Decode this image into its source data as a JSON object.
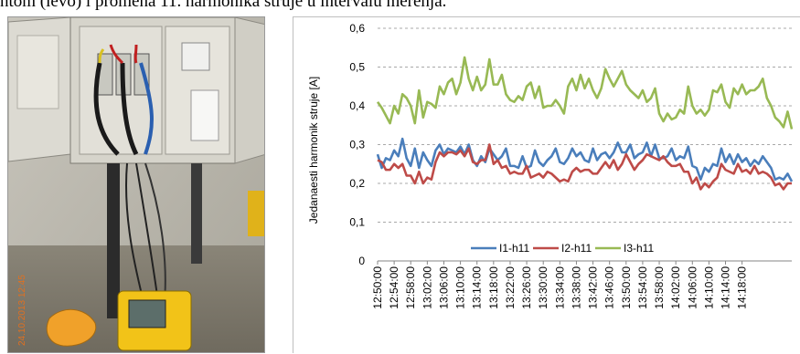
{
  "caption": "ntom (levo) i promena 11. harmonika struje u intervalu merenja.",
  "photo": {
    "timestamp_stamp": "24.10.2013 12:45"
  },
  "chart_data": {
    "type": "line",
    "title": "",
    "xlabel": "",
    "ylabel": "Jedanaesti  harmonik struje [A]",
    "ylim": [
      0,
      0.6
    ],
    "yticks": [
      "0",
      "0,1",
      "0,2",
      "0,3",
      "0,4",
      "0,5",
      "0,6"
    ],
    "grid": "horizontal dashed",
    "legend_position": "inside-bottom-center",
    "x_tick_labels": [
      "12:50:00",
      "12:54:00",
      "12:58:00",
      "13:02:00",
      "13:06:00",
      "13:10:00",
      "13:14:00",
      "13:18:00",
      "13:22:00",
      "13:26:00",
      "13:30:00",
      "13:34:00",
      "13:38:00",
      "13:42:00",
      "13:46:00",
      "13:50:00",
      "13:54:00",
      "13:58:00",
      "14:02:00",
      "14:06:00",
      "14:10:00",
      "14:14:00",
      "14:18:00"
    ],
    "x_tick_every": 4,
    "series": [
      {
        "name": "I1-h11",
        "color": "#4A7EBB",
        "values": [
          0.275,
          0.24,
          0.265,
          0.26,
          0.285,
          0.27,
          0.315,
          0.265,
          0.245,
          0.29,
          0.24,
          0.28,
          0.26,
          0.245,
          0.285,
          0.3,
          0.275,
          0.29,
          0.285,
          0.28,
          0.295,
          0.275,
          0.3,
          0.26,
          0.245,
          0.27,
          0.255,
          0.29,
          0.275,
          0.26,
          0.27,
          0.29,
          0.245,
          0.245,
          0.24,
          0.27,
          0.24,
          0.245,
          0.285,
          0.255,
          0.245,
          0.26,
          0.27,
          0.29,
          0.255,
          0.25,
          0.265,
          0.29,
          0.27,
          0.28,
          0.26,
          0.255,
          0.29,
          0.26,
          0.275,
          0.28,
          0.265,
          0.28,
          0.305,
          0.28,
          0.28,
          0.3,
          0.265,
          0.275,
          0.28,
          0.305,
          0.27,
          0.3,
          0.265,
          0.265,
          0.27,
          0.29,
          0.26,
          0.27,
          0.265,
          0.295,
          0.245,
          0.24,
          0.21,
          0.24,
          0.23,
          0.25,
          0.245,
          0.29,
          0.255,
          0.275,
          0.25,
          0.275,
          0.255,
          0.265,
          0.245,
          0.26,
          0.25,
          0.27,
          0.255,
          0.24,
          0.21,
          0.215,
          0.21,
          0.225,
          0.205
        ]
      },
      {
        "name": "I2-h11",
        "color": "#BE4B48",
        "values": [
          0.26,
          0.255,
          0.235,
          0.235,
          0.25,
          0.24,
          0.25,
          0.22,
          0.22,
          0.2,
          0.23,
          0.2,
          0.215,
          0.21,
          0.255,
          0.28,
          0.27,
          0.28,
          0.28,
          0.275,
          0.285,
          0.27,
          0.29,
          0.255,
          0.25,
          0.26,
          0.26,
          0.3,
          0.25,
          0.26,
          0.24,
          0.245,
          0.225,
          0.23,
          0.225,
          0.225,
          0.245,
          0.215,
          0.22,
          0.225,
          0.215,
          0.23,
          0.225,
          0.215,
          0.205,
          0.21,
          0.205,
          0.23,
          0.24,
          0.23,
          0.235,
          0.235,
          0.225,
          0.225,
          0.24,
          0.255,
          0.24,
          0.26,
          0.235,
          0.25,
          0.275,
          0.255,
          0.235,
          0.25,
          0.26,
          0.275,
          0.27,
          0.265,
          0.26,
          0.27,
          0.255,
          0.245,
          0.245,
          0.25,
          0.23,
          0.23,
          0.2,
          0.215,
          0.185,
          0.2,
          0.19,
          0.205,
          0.215,
          0.25,
          0.235,
          0.23,
          0.225,
          0.25,
          0.23,
          0.235,
          0.225,
          0.245,
          0.225,
          0.23,
          0.225,
          0.215,
          0.195,
          0.2,
          0.185,
          0.2,
          0.2
        ]
      },
      {
        "name": "I3-h11",
        "color": "#98B954",
        "values": [
          0.41,
          0.395,
          0.375,
          0.355,
          0.4,
          0.38,
          0.43,
          0.42,
          0.4,
          0.355,
          0.44,
          0.37,
          0.41,
          0.405,
          0.395,
          0.45,
          0.43,
          0.46,
          0.47,
          0.43,
          0.46,
          0.525,
          0.47,
          0.44,
          0.475,
          0.44,
          0.455,
          0.52,
          0.455,
          0.455,
          0.48,
          0.43,
          0.415,
          0.41,
          0.425,
          0.415,
          0.45,
          0.46,
          0.42,
          0.45,
          0.395,
          0.4,
          0.4,
          0.415,
          0.4,
          0.38,
          0.45,
          0.47,
          0.44,
          0.48,
          0.445,
          0.47,
          0.44,
          0.42,
          0.445,
          0.495,
          0.47,
          0.45,
          0.47,
          0.49,
          0.455,
          0.44,
          0.43,
          0.42,
          0.44,
          0.41,
          0.42,
          0.445,
          0.38,
          0.36,
          0.38,
          0.365,
          0.37,
          0.39,
          0.38,
          0.45,
          0.4,
          0.38,
          0.39,
          0.375,
          0.39,
          0.44,
          0.435,
          0.455,
          0.41,
          0.395,
          0.445,
          0.43,
          0.455,
          0.43,
          0.44,
          0.44,
          0.45,
          0.47,
          0.42,
          0.4,
          0.37,
          0.36,
          0.345,
          0.385,
          0.34
        ]
      }
    ]
  }
}
